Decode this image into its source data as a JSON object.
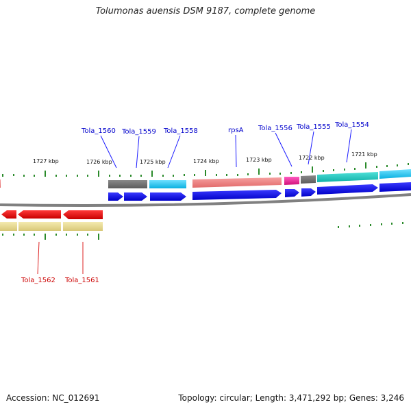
{
  "title": "Tolumonas auensis DSM 9187, complete genome",
  "footer": {
    "accession": "Accession: NC_012691",
    "summary": "Topology: circular; Length: 3,471,292 bp; Genes: 3,246"
  },
  "scale_labels": [
    "1727 kbp",
    "1726 kbp",
    "1725 kbp",
    "1724 kbp",
    "1723 kbp",
    "1722 kbp",
    "1721 kbp"
  ],
  "gene_labels_top": [
    "Tola_1560",
    "Tola_1559",
    "Tola_1558",
    "rpsA",
    "Tola_1556",
    "Tola_1555",
    "Tola_1554"
  ],
  "gene_labels_bottom": [
    "Tola_1562",
    "Tola_1561"
  ],
  "colors": {
    "forward_cds": "#0000ee",
    "reverse_cds": "#ee0000",
    "label_forward": "#0000cc",
    "label_reverse": "#cc0000",
    "backbone": "#808080",
    "tick": "#228b22",
    "feature_gray": "#707070",
    "feature_cyan": "#1ec8f0",
    "feature_pink": "#f08080",
    "feature_magenta": "#ee1493",
    "feature_teal": "#20c8c0",
    "feature_khaki": "#e8dc90"
  }
}
